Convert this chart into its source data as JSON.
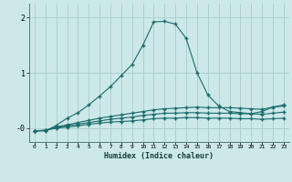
{
  "xlabel": "Humidex (Indice chaleur)",
  "background_color": "#cce8e8",
  "grid_color": "#aacccc",
  "line_color": "#1a6b6b",
  "x_values": [
    0,
    1,
    2,
    3,
    4,
    5,
    6,
    7,
    8,
    9,
    10,
    11,
    12,
    13,
    14,
    15,
    16,
    17,
    18,
    19,
    20,
    21,
    22,
    23
  ],
  "curve1": [
    -0.05,
    -0.05,
    0.05,
    0.18,
    0.28,
    0.42,
    0.58,
    0.75,
    0.95,
    1.15,
    1.5,
    1.92,
    1.93,
    1.88,
    1.62,
    1.0,
    0.6,
    0.4,
    0.3,
    0.28,
    0.26,
    0.3,
    0.38,
    0.42
  ],
  "curve2": [
    -0.05,
    -0.04,
    0.02,
    0.06,
    0.1,
    0.14,
    0.18,
    0.21,
    0.24,
    0.27,
    0.3,
    0.33,
    0.35,
    0.36,
    0.37,
    0.38,
    0.37,
    0.37,
    0.37,
    0.36,
    0.35,
    0.34,
    0.38,
    0.4
  ],
  "curve3": [
    -0.05,
    -0.04,
    0.01,
    0.04,
    0.07,
    0.1,
    0.13,
    0.16,
    0.18,
    0.2,
    0.23,
    0.25,
    0.27,
    0.27,
    0.28,
    0.28,
    0.27,
    0.27,
    0.27,
    0.26,
    0.26,
    0.25,
    0.27,
    0.29
  ],
  "curve4": [
    -0.05,
    -0.04,
    0.0,
    0.02,
    0.04,
    0.07,
    0.09,
    0.11,
    0.12,
    0.13,
    0.15,
    0.17,
    0.18,
    0.18,
    0.19,
    0.19,
    0.18,
    0.18,
    0.18,
    0.17,
    0.17,
    0.16,
    0.17,
    0.18
  ],
  "xlim": [
    -0.5,
    23.5
  ],
  "ylim": [
    -0.25,
    2.25
  ],
  "yticks": [
    0,
    1,
    2
  ],
  "ytick_labels": [
    "-0",
    "1",
    "2"
  ],
  "xticks": [
    0,
    1,
    2,
    3,
    4,
    5,
    6,
    7,
    8,
    9,
    10,
    11,
    12,
    13,
    14,
    15,
    16,
    17,
    18,
    19,
    20,
    21,
    22,
    23
  ]
}
